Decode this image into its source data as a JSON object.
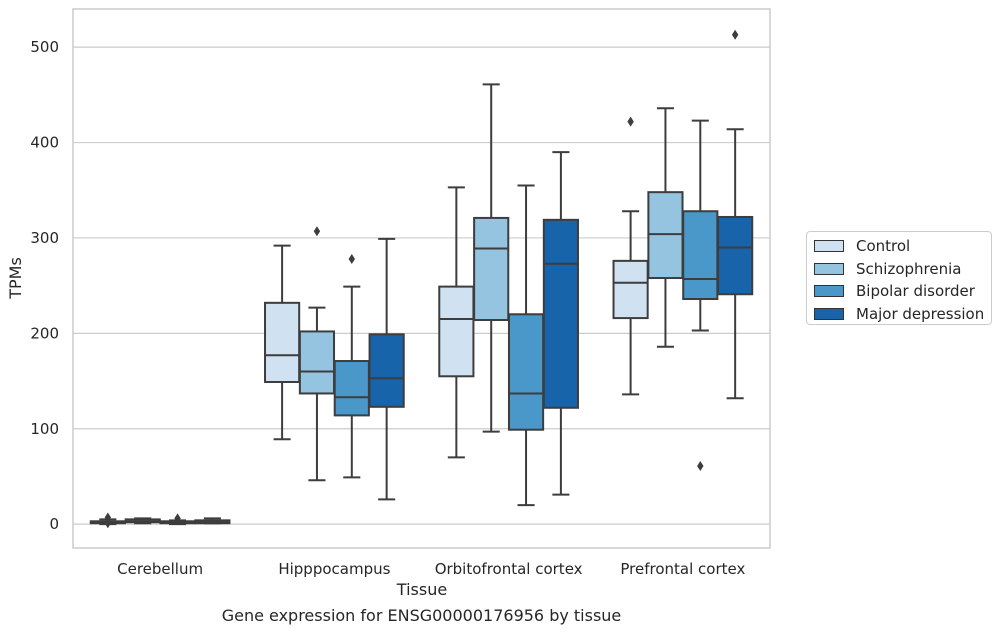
{
  "caption": "Gene expression for ENSG00000176956 by tissue",
  "chart_data": {
    "type": "box",
    "title": "",
    "xlabel": "Tissue",
    "ylabel": "TPMs",
    "ylim": [
      -25,
      540
    ],
    "yticks": [
      0,
      100,
      200,
      300,
      400,
      500
    ],
    "grid": true,
    "legend_position": "right",
    "categories": [
      "Cerebellum",
      "Hipppocampus",
      "Orbitofrontal cortex",
      "Prefrontal cortex"
    ],
    "series": [
      {
        "name": "Control",
        "color": "#d0e1f2",
        "boxes": [
          {
            "whislo": 0,
            "q1": 1,
            "med": 2,
            "q3": 3,
            "whishi": 5,
            "fliers": [
              7,
              1
            ]
          },
          {
            "whislo": 89,
            "q1": 149,
            "med": 177,
            "q3": 232,
            "whishi": 292,
            "fliers": []
          },
          {
            "whislo": 70,
            "q1": 155,
            "med": 215,
            "q3": 249,
            "whishi": 353,
            "fliers": []
          },
          {
            "whislo": 136,
            "q1": 216,
            "med": 253,
            "q3": 276,
            "whishi": 328,
            "fliers": [
              422
            ]
          }
        ]
      },
      {
        "name": "Schizophrenia",
        "color": "#94c4df",
        "boxes": [
          {
            "whislo": 1,
            "q1": 2,
            "med": 3,
            "q3": 5,
            "whishi": 6,
            "fliers": []
          },
          {
            "whislo": 46,
            "q1": 137,
            "med": 160,
            "q3": 202,
            "whishi": 227,
            "fliers": [
              307
            ]
          },
          {
            "whislo": 97,
            "q1": 214,
            "med": 289,
            "q3": 321,
            "whishi": 461,
            "fliers": []
          },
          {
            "whislo": 186,
            "q1": 258,
            "med": 304,
            "q3": 348,
            "whishi": 436,
            "fliers": []
          }
        ]
      },
      {
        "name": "Bipolar disorder",
        "color": "#4a98c9",
        "boxes": [
          {
            "whislo": 0,
            "q1": 1,
            "med": 2,
            "q3": 3,
            "whishi": 4,
            "fliers": [
              6
            ]
          },
          {
            "whislo": 49,
            "q1": 114,
            "med": 133,
            "q3": 171,
            "whishi": 249,
            "fliers": [
              278
            ]
          },
          {
            "whislo": 20,
            "q1": 99,
            "med": 137,
            "q3": 220,
            "whishi": 355,
            "fliers": []
          },
          {
            "whislo": 203,
            "q1": 236,
            "med": 257,
            "q3": 328,
            "whishi": 423,
            "fliers": [
              61
            ]
          }
        ]
      },
      {
        "name": "Major depression",
        "color": "#1764ab",
        "boxes": [
          {
            "whislo": 1,
            "q1": 1,
            "med": 2,
            "q3": 4,
            "whishi": 6,
            "fliers": []
          },
          {
            "whislo": 26,
            "q1": 123,
            "med": 153,
            "q3": 199,
            "whishi": 299,
            "fliers": []
          },
          {
            "whislo": 31,
            "q1": 122,
            "med": 273,
            "q3": 319,
            "whishi": 390,
            "fliers": []
          },
          {
            "whislo": 132,
            "q1": 241,
            "med": 290,
            "q3": 322,
            "whishi": 414,
            "fliers": [
              513
            ]
          }
        ]
      }
    ]
  }
}
